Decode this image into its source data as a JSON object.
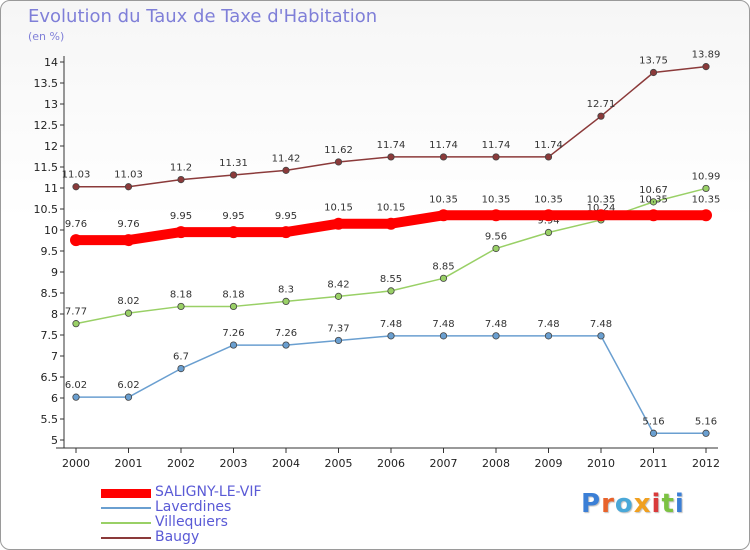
{
  "title": "Evolution du Taux de Taxe d'Habitation",
  "subtitle": "(en %)",
  "logo": {
    "text": "Proxiti",
    "colors": [
      "#3b7fd6",
      "#e8622a",
      "#4aa8d8",
      "#f0a020",
      "#d93a3a",
      "#7cc242",
      "#3b7fd6"
    ]
  },
  "chart_data": {
    "type": "line",
    "title": "Evolution du Taux de Taxe d'Habitation",
    "ylabel": "(en %)",
    "xlabel": "",
    "ylim": [
      5,
      14
    ],
    "yticks": [
      "5",
      "5.5",
      "6",
      "6.5",
      "7",
      "7.5",
      "8",
      "8.5",
      "9",
      "9.5",
      "10",
      "10.5",
      "11",
      "11.5",
      "12",
      "12.5",
      "13",
      "13.5",
      "14"
    ],
    "categories": [
      "2000",
      "2001",
      "2002",
      "2003",
      "2004",
      "2005",
      "2006",
      "2007",
      "2008",
      "2009",
      "2010",
      "2011",
      "2012"
    ],
    "grid": false,
    "legend": "bottom-left",
    "series": [
      {
        "name": "Baugy",
        "color": "#8b3a3a",
        "values": [
          11.03,
          11.03,
          11.2,
          11.31,
          11.42,
          11.62,
          11.74,
          11.74,
          11.74,
          11.74,
          12.71,
          13.75,
          13.89
        ]
      },
      {
        "name": "Villequiers",
        "color": "#99d066",
        "values": [
          7.77,
          8.02,
          8.18,
          8.18,
          8.3,
          8.42,
          8.55,
          8.85,
          9.56,
          9.94,
          10.24,
          10.67,
          10.99
        ]
      },
      {
        "name": "Laverdines",
        "color": "#6a9fd0",
        "values": [
          6.02,
          6.02,
          6.7,
          7.26,
          7.26,
          7.37,
          7.48,
          7.48,
          7.48,
          7.48,
          7.48,
          5.16,
          5.16
        ]
      },
      {
        "name": "SALIGNY-LE-VIF",
        "color": "#ff0000",
        "values": [
          9.76,
          9.76,
          9.95,
          9.95,
          9.95,
          10.15,
          10.15,
          10.35,
          10.35,
          10.35,
          10.35,
          10.35,
          10.35
        ]
      }
    ],
    "legend_order": [
      "SALIGNY-LE-VIF",
      "Laverdines",
      "Villequiers",
      "Baugy"
    ]
  }
}
